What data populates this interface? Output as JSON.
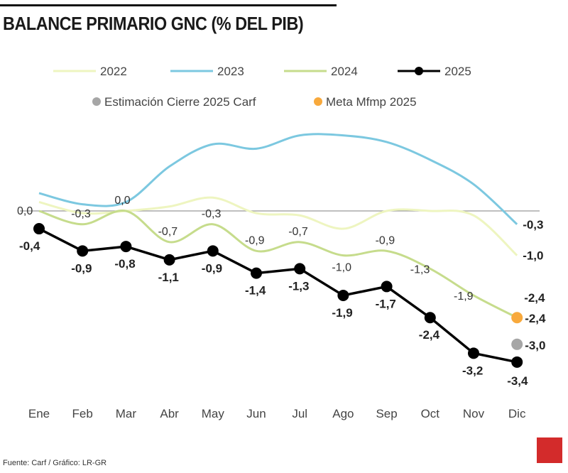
{
  "title": "BALANCE PRIMARIO GNC (% DEL PIB)",
  "source": "Fuente: Carf / Gráfico: LR-GR",
  "logo": "LR",
  "chart_data": {
    "type": "line",
    "title": "BALANCE PRIMARIO GNC (% DEL PIB)",
    "categories": [
      "Ene",
      "Feb",
      "Mar",
      "Abr",
      "May",
      "Jun",
      "Jul",
      "Ago",
      "Sep",
      "Oct",
      "Nov",
      "Dic"
    ],
    "ylim": [
      -3.8,
      2.0
    ],
    "grid": false,
    "zero_line": true,
    "zero_label": "0,0",
    "legend_position": "top",
    "series": [
      {
        "name": "2022",
        "color": "#eef5c0",
        "values": [
          0.2,
          -0.05,
          0.0,
          0.1,
          0.3,
          -0.05,
          -0.1,
          -0.4,
          0.0,
          0.0,
          -0.1,
          -1.0
        ],
        "labels": {
          "11": "-1,0"
        }
      },
      {
        "name": "2023",
        "color": "#7cc8e0",
        "values": [
          0.4,
          0.15,
          0.2,
          1.0,
          1.5,
          1.4,
          1.7,
          1.7,
          1.55,
          1.15,
          0.6,
          -0.3
        ],
        "labels": {
          "11": "-0,3"
        }
      },
      {
        "name": "2024",
        "color": "#c6dc8c",
        "values": [
          0.0,
          -0.3,
          0.0,
          -0.7,
          -0.3,
          -0.9,
          -0.7,
          -1.0,
          -0.9,
          -1.3,
          -1.9,
          -2.4
        ],
        "labels": {
          "1": "-0,3",
          "2": "0,0",
          "3": "-0,7",
          "4": "-0,3",
          "5": "-0,9",
          "6": "-0,7",
          "7": "-1,0",
          "8": "-0,9",
          "9": "-1,3",
          "10": "-1,9",
          "11": "-2,4"
        }
      },
      {
        "name": "2025",
        "color": "#000000",
        "markers": true,
        "values": [
          -0.4,
          -0.9,
          -0.8,
          -1.1,
          -0.9,
          -1.4,
          -1.3,
          -1.9,
          -1.7,
          -2.4,
          -3.2,
          -3.4
        ],
        "labels": {
          "0": "-0,4",
          "1": "-0,9",
          "2": "-0,8",
          "3": "-1,1",
          "4": "-0,9",
          "5": "-1,4",
          "6": "-1,3",
          "7": "-1,9",
          "8": "-1,7",
          "9": "-2,4",
          "10": "-3,2",
          "11": "-3,4"
        }
      }
    ],
    "points": [
      {
        "name": "Estimación Cierre 2025 Carf",
        "color": "#a6a6a6",
        "category": "Dic",
        "value": -3.0,
        "label": "-3,0"
      },
      {
        "name": "Meta Mfmp 2025",
        "color": "#f8a93c",
        "category": "Dic",
        "value": -2.4,
        "label": "-2,4"
      }
    ]
  }
}
